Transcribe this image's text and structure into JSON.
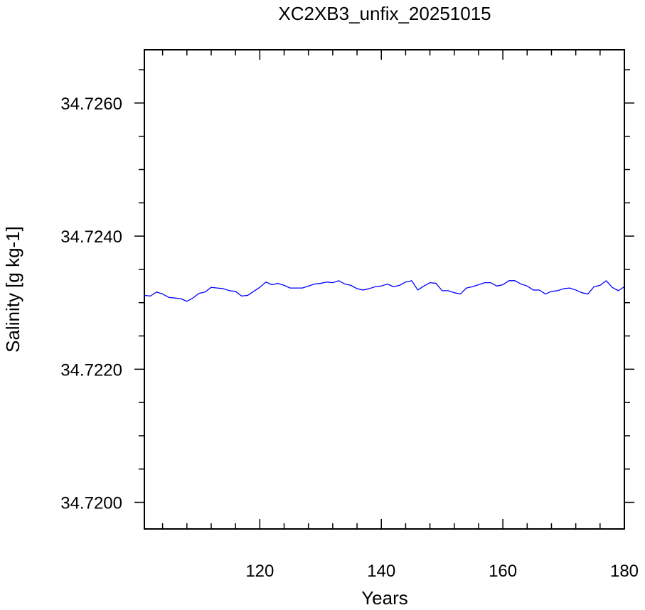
{
  "chart_data": {
    "type": "line",
    "title": "XC2XB3_unfix_20251015",
    "xlabel": "Years",
    "ylabel": "Salinity [g kg-1]",
    "xlim": [
      101,
      180
    ],
    "ylim": [
      34.7196,
      34.7268
    ],
    "x_major_ticks": [
      120,
      140,
      160,
      180
    ],
    "x_minor_step": 4,
    "y_major_ticks": [
      34.72,
      34.722,
      34.724,
      34.726
    ],
    "y_minor_step": 0.0005,
    "y_tick_labels": [
      "34.7200",
      "34.7220",
      "34.7240",
      "34.7260"
    ],
    "x_tick_labels": [
      "120",
      "140",
      "160",
      "180"
    ],
    "grid": false,
    "series": [
      {
        "color": "#0000ff",
        "x": [
          101,
          102,
          103,
          104,
          105,
          106,
          107,
          108,
          109,
          110,
          111,
          112,
          113,
          114,
          115,
          116,
          117,
          118,
          119,
          120,
          121,
          122,
          123,
          124,
          125,
          126,
          127,
          128,
          129,
          130,
          131,
          132,
          133,
          134,
          135,
          136,
          137,
          138,
          139,
          140,
          141,
          142,
          143,
          144,
          145,
          146,
          147,
          148,
          149,
          150,
          151,
          152,
          153,
          154,
          155,
          156,
          157,
          158,
          159,
          160,
          161,
          162,
          163,
          164,
          165,
          166,
          167,
          168,
          169,
          170,
          171,
          172,
          173,
          174,
          175,
          176,
          177,
          178,
          179,
          180
        ],
        "y": [
          34.72311,
          34.7231,
          34.72316,
          34.72313,
          34.72308,
          34.72307,
          34.72306,
          34.72302,
          34.72307,
          34.72314,
          34.72316,
          34.72323,
          34.72322,
          34.72321,
          34.72318,
          34.72317,
          34.7231,
          34.72311,
          34.72317,
          34.72323,
          34.72331,
          34.72327,
          34.72329,
          34.72326,
          34.72322,
          34.72322,
          34.72322,
          34.72325,
          34.72328,
          34.72329,
          34.72331,
          34.7233,
          34.72333,
          34.72328,
          34.72326,
          34.72321,
          34.72319,
          34.72321,
          34.72324,
          34.72325,
          34.72328,
          34.72324,
          34.72326,
          34.72331,
          34.72333,
          34.72319,
          34.72325,
          34.7233,
          34.72329,
          34.72318,
          34.72318,
          34.72315,
          34.72313,
          34.72322,
          34.72324,
          34.72327,
          34.7233,
          34.7233,
          34.72325,
          34.72327,
          34.72333,
          34.72333,
          34.72328,
          34.72325,
          34.72319,
          34.72319,
          34.72313,
          34.72317,
          34.72318,
          34.72321,
          34.72322,
          34.72319,
          34.72315,
          34.72313,
          34.72324,
          34.72326,
          34.72333,
          34.72323,
          34.72318,
          34.72324
        ]
      }
    ]
  }
}
